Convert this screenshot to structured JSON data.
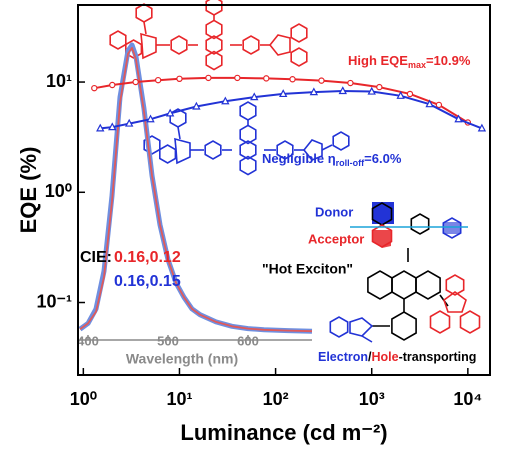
{
  "chart_data": [
    {
      "type": "line",
      "xlabel": "Luminance (cd m⁻²)",
      "ylabel": "EQE (%)",
      "xscale": "log",
      "yscale": "log",
      "grid": false,
      "xlim": [
        0.88,
        17000
      ],
      "ylim": [
        0.022,
        50
      ],
      "xticks": [
        {
          "value": 1,
          "label": "10⁰"
        },
        {
          "value": 10,
          "label": "10¹"
        },
        {
          "value": 100,
          "label": "10²"
        },
        {
          "value": 1000,
          "label": "10³"
        },
        {
          "value": 10000,
          "label": "10⁴"
        }
      ],
      "yticks": [
        {
          "value": 0.1,
          "label": "10⁻¹"
        },
        {
          "value": 1,
          "label": "10⁰"
        },
        {
          "value": 10,
          "label": "10¹"
        }
      ],
      "series": [
        {
          "color": "#e8262a",
          "marker": "circle",
          "x": [
            1.3,
            2,
            3.5,
            6,
            10,
            20,
            40,
            80,
            150,
            300,
            600,
            1200,
            2500,
            5000,
            10000
          ],
          "values": [
            8.8,
            9.4,
            10,
            10.4,
            10.7,
            10.9,
            10.9,
            10.8,
            10.6,
            10.3,
            9.8,
            9,
            7.8,
            6.2,
            4.3
          ]
        },
        {
          "color": "#2233d6",
          "marker": "triangle",
          "x": [
            1.5,
            2,
            3,
            5,
            8,
            15,
            30,
            60,
            120,
            250,
            500,
            1000,
            2000,
            4000,
            8000,
            14000
          ],
          "values": [
            3.8,
            3.9,
            4.2,
            4.6,
            5.2,
            6,
            6.7,
            7.3,
            7.8,
            8.1,
            8.3,
            8.2,
            7.5,
            6.3,
            4.6,
            3.8
          ]
        }
      ],
      "annotations": [
        {
          "text": "High EQE",
          "sub": "max",
          "rest": "=10.9%",
          "color": "#e8262a"
        },
        {
          "text": "Negligible η",
          "sub": "roll-off",
          "rest": "=6.0%",
          "color": "#2233d6"
        }
      ],
      "cie": {
        "label": "CIE:",
        "red": "0.16,0.12",
        "blue": "0.16,0.15"
      },
      "structure_labels": {
        "donor": "Donor",
        "acceptor": "Acceptor",
        "hot_exciton": "\"Hot Exciton\"",
        "transport": [
          "Electron",
          "/",
          "Hole",
          "-transporting"
        ]
      }
    },
    {
      "type": "line",
      "xlabel": "Wavelength (nm)",
      "xlim": [
        390,
        680
      ],
      "ylim": [
        0,
        1
      ],
      "xticks": [
        400,
        500,
        600
      ],
      "x": [
        390,
        400,
        410,
        420,
        430,
        440,
        450,
        455,
        460,
        470,
        480,
        490,
        500,
        510,
        520,
        530,
        540,
        560,
        580,
        600,
        620,
        650,
        680
      ],
      "series": [
        {
          "color": "#6f8fe0",
          "values": [
            0.02,
            0.04,
            0.09,
            0.22,
            0.48,
            0.82,
            0.98,
            1.0,
            0.96,
            0.78,
            0.55,
            0.38,
            0.26,
            0.18,
            0.13,
            0.09,
            0.07,
            0.045,
            0.03,
            0.022,
            0.018,
            0.015,
            0.013
          ]
        },
        {
          "color": "#e05a5a",
          "values": [
            0.02,
            0.04,
            0.08,
            0.2,
            0.46,
            0.8,
            0.97,
            0.99,
            0.95,
            0.77,
            0.55,
            0.38,
            0.26,
            0.18,
            0.13,
            0.09,
            0.07,
            0.045,
            0.03,
            0.022,
            0.018,
            0.015,
            0.013
          ]
        }
      ]
    }
  ]
}
